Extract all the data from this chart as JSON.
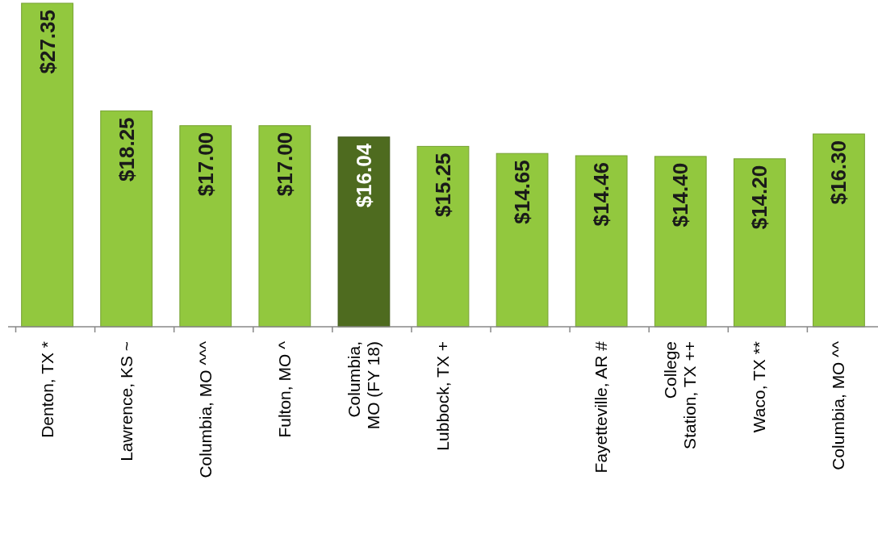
{
  "chart_data": {
    "type": "bar",
    "categories": [
      "Denton, TX *",
      "Lawrence, KS ~",
      "Columbia, MO ^^^",
      "Fulton, MO ^",
      "Columbia, MO (FY 18)",
      "Lubbock, TX +",
      null,
      "Fayetteville, AR #",
      "College Station, TX ++",
      "Waco, TX **",
      "Columbia, MO ^^"
    ],
    "values": [
      27.35,
      18.25,
      17.0,
      17.0,
      16.04,
      15.25,
      14.65,
      14.46,
      14.4,
      14.2,
      16.3
    ],
    "value_labels": [
      "$27.35",
      "$18.25",
      "$17.00",
      "$17.00",
      "$16.04",
      "$15.25",
      "$14.65",
      "$14.46",
      "$14.40",
      "$14.20",
      "$16.30"
    ],
    "colors": [
      "#92c83e",
      "#92c83e",
      "#92c83e",
      "#92c83e",
      "#4e6b1f",
      "#92c83e",
      "#92c83e",
      "#92c83e",
      "#92c83e",
      "#92c83e",
      "#92c83e"
    ]
  }
}
